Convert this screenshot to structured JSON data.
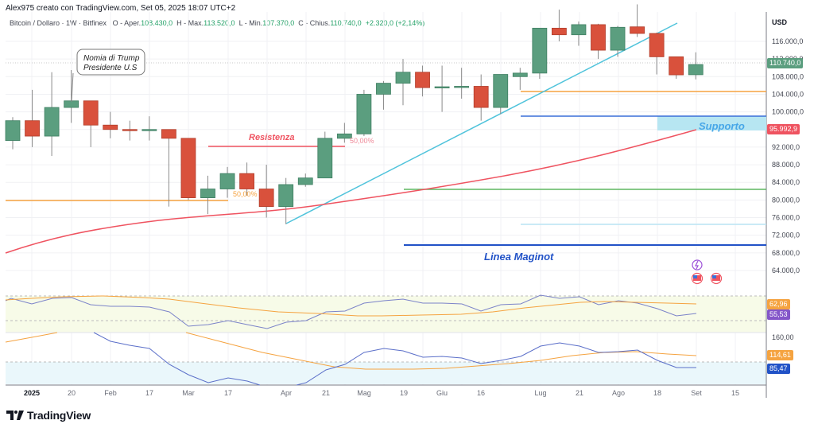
{
  "header": {
    "attribution": "Alex975 creato con TradingView.com, Set 05, 2025 18:07 UTC+2"
  },
  "legend": {
    "symbol": "Bitcoin / Dollaro · 1W · Bitfinex",
    "open_label": "O - Aper.",
    "open": "108.430,0",
    "high_label": "H - Max.",
    "high": "113.520,0",
    "low_label": "L - Min.",
    "low": "107.370,0",
    "close_label": "C - Chius.",
    "close": "110.740,0",
    "change": "+2.320,0 (+2,14%)"
  },
  "price_axis": {
    "currency": "USD",
    "ticks": [
      "116.000,0",
      "112.000,0",
      "108.000,0",
      "104.000,0",
      "100.000,0",
      "92.000,0",
      "88.000,0",
      "84.000,0",
      "80.000,0",
      "76.000,0",
      "72.000,0",
      "68.000,0",
      "64.000,0"
    ],
    "last_price_tag": "110.740,0",
    "ma_tag": "95.992,9"
  },
  "indicator_axis": {
    "upper_tag_orange": "62,96",
    "upper_tag_purple": "55,53",
    "tick": "160,00",
    "lower_tag_orange": "114,61",
    "lower_tag_blue": "85,47"
  },
  "time_axis": {
    "labels": [
      "2025",
      "20",
      "Feb",
      "17",
      "Mar",
      "17",
      "Apr",
      "21",
      "Mag",
      "19",
      "Giu",
      "16",
      "Lug",
      "21",
      "Ago",
      "18",
      "Set",
      "15"
    ]
  },
  "annotations": {
    "callout": [
      "Nomia di Trump",
      "Presidente U.S"
    ],
    "resistenza": "Resistenza",
    "fib1": "50,00%",
    "fib2": "50,00%",
    "supporto": "Supporto",
    "maginot": "Linea Maginot"
  },
  "branding": {
    "logo_text": "TradingView"
  },
  "colors": {
    "up": "#5b9e7f",
    "down": "#d9513c",
    "ma": "#ef5360",
    "trendline": "#4fc3db",
    "orange_level": "#f5a340",
    "blue_level": "#3a6fd8",
    "green_level": "#5fb760",
    "maginot": "#2152c7"
  },
  "chart_data": {
    "type": "candlestick",
    "title": "Bitcoin / Dollaro · 1W · Bitfinex",
    "ylabel": "USD",
    "ylim": [
      60000,
      120000
    ],
    "categories": [
      "2024-12-30",
      "2025-01-06",
      "2025-01-13",
      "2025-01-20",
      "2025-01-27",
      "2025-02-03",
      "2025-02-10",
      "2025-02-17",
      "2025-02-24",
      "2025-03-03",
      "2025-03-10",
      "2025-03-17",
      "2025-03-24",
      "2025-03-31",
      "2025-04-07",
      "2025-04-14",
      "2025-04-21",
      "2025-04-28",
      "2025-05-05",
      "2025-05-12",
      "2025-05-19",
      "2025-05-26",
      "2025-06-02",
      "2025-06-09",
      "2025-06-16",
      "2025-06-23",
      "2025-06-30",
      "2025-07-07",
      "2025-07-14",
      "2025-07-21",
      "2025-07-28",
      "2025-08-04",
      "2025-08-11",
      "2025-08-18",
      "2025-08-25",
      "2025-09-01"
    ],
    "ohlc": [
      [
        93500,
        98800,
        91500,
        98000
      ],
      [
        98000,
        105000,
        92000,
        94500
      ],
      [
        94500,
        109000,
        90000,
        101000
      ],
      [
        101000,
        109500,
        97500,
        102500
      ],
      [
        102500,
        102500,
        92000,
        97000
      ],
      [
        97000,
        100000,
        94000,
        96000
      ],
      [
        96000,
        98000,
        93500,
        95800
      ],
      [
        95800,
        99000,
        93500,
        96000
      ],
      [
        96000,
        96000,
        78500,
        94000
      ],
      [
        94000,
        94000,
        80000,
        80500
      ],
      [
        80500,
        85500,
        76800,
        82500
      ],
      [
        82500,
        87500,
        80500,
        86000
      ],
      [
        86000,
        88500,
        81000,
        82500
      ],
      [
        82500,
        88000,
        76000,
        78500
      ],
      [
        78500,
        85000,
        74500,
        83500
      ],
      [
        83500,
        86000,
        83000,
        85000
      ],
      [
        85000,
        95500,
        85000,
        94000
      ],
      [
        94000,
        97500,
        93000,
        95000
      ],
      [
        95000,
        105000,
        94500,
        104000
      ],
      [
        104000,
        107000,
        100500,
        106500
      ],
      [
        106500,
        112000,
        101500,
        109000
      ],
      [
        109000,
        110500,
        103500,
        105500
      ],
      [
        105500,
        110500,
        100000,
        105700
      ],
      [
        105700,
        110000,
        103000,
        105800
      ],
      [
        105800,
        108500,
        98000,
        101000
      ],
      [
        101000,
        108000,
        99500,
        108500
      ],
      [
        108000,
        110000,
        105000,
        108800
      ],
      [
        108800,
        119000,
        107500,
        119000
      ],
      [
        119000,
        123200,
        116000,
        117500
      ],
      [
        117500,
        120500,
        115000,
        119800
      ],
      [
        119800,
        120000,
        112000,
        114000
      ],
      [
        114000,
        119500,
        112500,
        119200
      ],
      [
        119300,
        124400,
        117000,
        117800
      ],
      [
        117800,
        118000,
        108500,
        112500
      ],
      [
        112500,
        112500,
        107500,
        108400
      ],
      [
        108430,
        113520,
        107370,
        110740
      ]
    ],
    "levels": [
      {
        "name": "Resistenza",
        "value": 92500
      },
      {
        "name": "Supporto",
        "value": 98800
      },
      {
        "name": "orange-level-right",
        "value": 104800
      },
      {
        "name": "orange-level-left",
        "value": 80000
      },
      {
        "name": "green-level",
        "value": 82500
      },
      {
        "name": "light-blue-level",
        "value": 74500
      },
      {
        "name": "Linea Maginot",
        "value": 69000
      }
    ],
    "moving_average_last": 95992.9,
    "last_close": 110740,
    "indicators": [
      {
        "name": "upper oscillator",
        "values_last": [
          62.96,
          55.53
        ]
      },
      {
        "name": "lower oscillator",
        "values_last": [
          114.61,
          85.47
        ],
        "tick": 160
      }
    ]
  }
}
